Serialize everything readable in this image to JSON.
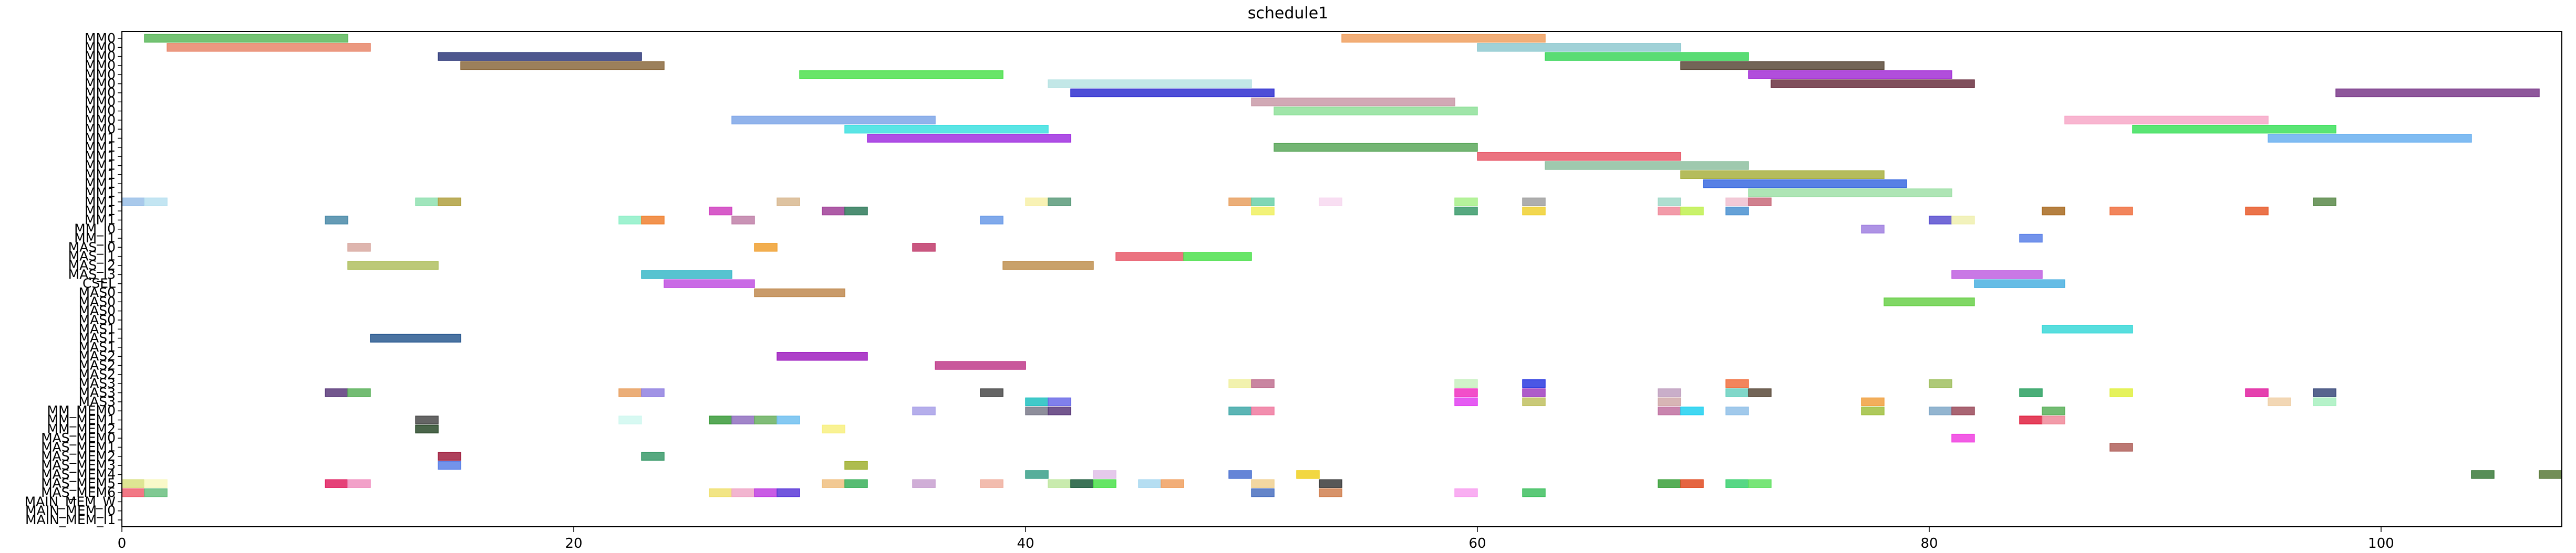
{
  "chart_data": {
    "type": "gantt",
    "title": "schedule1",
    "xlim": [
      0,
      108
    ],
    "x_ticks": [
      0,
      20,
      40,
      60,
      80,
      100
    ],
    "grid": false,
    "legend": "none",
    "rows": [
      "MM0",
      "MM0",
      "MM0",
      "MM0",
      "MM0",
      "MM0",
      "MM0",
      "MM0",
      "MM0",
      "MM0",
      "MM0",
      "MM1",
      "MM1",
      "MM1",
      "MM1",
      "MM1",
      "MM1",
      "MM1",
      "MM1",
      "MM1",
      "MM1",
      "MM_I0",
      "MM_I1",
      "MAS_I0",
      "MAS_I1",
      "MAS_I2",
      "MAS_I3",
      "CSEL",
      "MAS0",
      "MAS0",
      "MAS0",
      "MAS0",
      "MAS1",
      "MAS1",
      "MAS1",
      "MAS2",
      "MAS2",
      "MAS2",
      "MAS3",
      "MAS3",
      "MAS3",
      "MM_MEM0",
      "MM_MEM1",
      "MM_MEM2",
      "MAS_MEM0",
      "MAS_MEM1",
      "MAS_MEM2",
      "MAS_MEM3",
      "MAS_MEM4",
      "MAS_MEM5",
      "MAS_MEM6",
      "MAIN_MEM_W",
      "MAIN_MEM_I0",
      "MAIN_MEM_I1"
    ],
    "tasks": [
      {
        "row": 0,
        "start": 1,
        "end": 10,
        "color": "#5cb85c"
      },
      {
        "row": 0,
        "start": 54,
        "end": 63,
        "color": "#f0a060"
      },
      {
        "row": 1,
        "start": 2,
        "end": 11,
        "color": "#e8866a"
      },
      {
        "row": 1,
        "start": 60,
        "end": 69,
        "color": "#8fc9d0"
      },
      {
        "row": 2,
        "start": 14,
        "end": 23,
        "color": "#2f3a7a"
      },
      {
        "row": 2,
        "start": 63,
        "end": 72,
        "color": "#3dd65c"
      },
      {
        "row": 3,
        "start": 15,
        "end": 24,
        "color": "#8b6a3e"
      },
      {
        "row": 3,
        "start": 69,
        "end": 78,
        "color": "#5a4a3a"
      },
      {
        "row": 4,
        "start": 30,
        "end": 39,
        "color": "#4ee04e"
      },
      {
        "row": 4,
        "start": 72,
        "end": 81,
        "color": "#a32fd6"
      },
      {
        "row": 5,
        "start": 41,
        "end": 50,
        "color": "#b7e3e3"
      },
      {
        "row": 5,
        "start": 73,
        "end": 82,
        "color": "#6a3040"
      },
      {
        "row": 6,
        "start": 42,
        "end": 51,
        "color": "#2f2fd0"
      },
      {
        "row": 6,
        "start": 98,
        "end": 107,
        "color": "#7a3a8a"
      },
      {
        "row": 7,
        "start": 50,
        "end": 59,
        "color": "#c99aa8"
      },
      {
        "row": 8,
        "start": 51,
        "end": 60,
        "color": "#8fe09a"
      },
      {
        "row": 9,
        "start": 27,
        "end": 36,
        "color": "#7ea6e8"
      },
      {
        "row": 9,
        "start": 86,
        "end": 95,
        "color": "#f7a8c8"
      },
      {
        "row": 10,
        "start": 32,
        "end": 41,
        "color": "#3de0e0"
      },
      {
        "row": 10,
        "start": 89,
        "end": 98,
        "color": "#3de05c"
      },
      {
        "row": 11,
        "start": 33,
        "end": 42,
        "color": "#a030e0"
      },
      {
        "row": 11,
        "start": 95,
        "end": 104,
        "color": "#6ab0f0"
      },
      {
        "row": 12,
        "start": 51,
        "end": 60,
        "color": "#5ca85c"
      },
      {
        "row": 13,
        "start": 60,
        "end": 69,
        "color": "#e85a6a"
      },
      {
        "row": 14,
        "start": 63,
        "end": 72,
        "color": "#8ec0a0"
      },
      {
        "row": 15,
        "start": 69,
        "end": 78,
        "color": "#a8b040"
      },
      {
        "row": 16,
        "start": 70,
        "end": 79,
        "color": "#3a6ae0"
      },
      {
        "row": 17,
        "start": 72,
        "end": 81,
        "color": "#a0e0a8"
      },
      {
        "row": 18,
        "start": 0,
        "end": 1,
        "color": "#9ac0e8"
      },
      {
        "row": 18,
        "start": 1,
        "end": 2,
        "color": "#b8e0f0"
      },
      {
        "row": 18,
        "start": 13,
        "end": 14,
        "color": "#8fe0b0"
      },
      {
        "row": 18,
        "start": 14,
        "end": 15,
        "color": "#b0a040"
      },
      {
        "row": 18,
        "start": 29,
        "end": 30,
        "color": "#d8b890"
      },
      {
        "row": 18,
        "start": 40,
        "end": 41,
        "color": "#f7f0a8"
      },
      {
        "row": 18,
        "start": 41,
        "end": 42,
        "color": "#5a9a7a"
      },
      {
        "row": 18,
        "start": 49,
        "end": 50,
        "color": "#e8a060"
      },
      {
        "row": 18,
        "start": 50,
        "end": 51,
        "color": "#6ad0a8"
      },
      {
        "row": 18,
        "start": 53,
        "end": 54,
        "color": "#f7d8f0"
      },
      {
        "row": 18,
        "start": 59,
        "end": 60,
        "color": "#a8f08a"
      },
      {
        "row": 18,
        "start": 62,
        "end": 63,
        "color": "#a0a0a0"
      },
      {
        "row": 18,
        "start": 68,
        "end": 69,
        "color": "#a0d8c8"
      },
      {
        "row": 18,
        "start": 71,
        "end": 72,
        "color": "#f0c0d0"
      },
      {
        "row": 18,
        "start": 72,
        "end": 73,
        "color": "#c86a7a"
      },
      {
        "row": 18,
        "start": 97,
        "end": 98,
        "color": "#5a8a4a"
      },
      {
        "row": 19,
        "start": 26,
        "end": 27,
        "color": "#d040c0"
      },
      {
        "row": 19,
        "start": 31,
        "end": 32,
        "color": "#a04098"
      },
      {
        "row": 19,
        "start": 32,
        "end": 33,
        "color": "#2f7a5a"
      },
      {
        "row": 19,
        "start": 50,
        "end": 51,
        "color": "#f0f060"
      },
      {
        "row": 19,
        "start": 59,
        "end": 60,
        "color": "#3a9a6a"
      },
      {
        "row": 19,
        "start": 62,
        "end": 63,
        "color": "#f0d030"
      },
      {
        "row": 19,
        "start": 68,
        "end": 69,
        "color": "#f08a9a"
      },
      {
        "row": 19,
        "start": 69,
        "end": 70,
        "color": "#c0f050"
      },
      {
        "row": 19,
        "start": 71,
        "end": 72,
        "color": "#4a90d0"
      },
      {
        "row": 19,
        "start": 85,
        "end": 86,
        "color": "#a86a20"
      },
      {
        "row": 19,
        "start": 88,
        "end": 89,
        "color": "#f07040"
      },
      {
        "row": 19,
        "start": 94,
        "end": 95,
        "color": "#e85a2a"
      },
      {
        "row": 20,
        "start": 9,
        "end": 10,
        "color": "#4a8aa8"
      },
      {
        "row": 20,
        "start": 22,
        "end": 23,
        "color": "#8ef0c8"
      },
      {
        "row": 20,
        "start": 23,
        "end": 24,
        "color": "#f08030"
      },
      {
        "row": 20,
        "start": 27,
        "end": 28,
        "color": "#c080a8"
      },
      {
        "row": 20,
        "start": 38,
        "end": 39,
        "color": "#6a9ae8"
      },
      {
        "row": 20,
        "start": 80,
        "end": 81,
        "color": "#5a50d0"
      },
      {
        "row": 20,
        "start": 81,
        "end": 82,
        "color": "#f0f0b0"
      },
      {
        "row": 21,
        "start": 77,
        "end": 78,
        "color": "#a080e0"
      },
      {
        "row": 22,
        "start": 84,
        "end": 85,
        "color": "#5a80e8"
      },
      {
        "row": 23,
        "start": 10,
        "end": 11,
        "color": "#d8a8a0"
      },
      {
        "row": 23,
        "start": 28,
        "end": 29,
        "color": "#f0a030"
      },
      {
        "row": 23,
        "start": 35,
        "end": 36,
        "color": "#c03a6a"
      },
      {
        "row": 24,
        "start": 44,
        "end": 47,
        "color": "#e85a6a"
      },
      {
        "row": 24,
        "start": 47,
        "end": 50,
        "color": "#4ee04e"
      },
      {
        "row": 25,
        "start": 10,
        "end": 14,
        "color": "#b0c060"
      },
      {
        "row": 25,
        "start": 39,
        "end": 43,
        "color": "#c09050"
      },
      {
        "row": 26,
        "start": 23,
        "end": 27,
        "color": "#3ab8c8"
      },
      {
        "row": 26,
        "start": 81,
        "end": 85,
        "color": "#c060e0"
      },
      {
        "row": 27,
        "start": 24,
        "end": 28,
        "color": "#c050e0"
      },
      {
        "row": 27,
        "start": 82,
        "end": 86,
        "color": "#4ab0e0"
      },
      {
        "row": 28,
        "start": 28,
        "end": 32,
        "color": "#c08a50"
      },
      {
        "row": 29,
        "start": 78,
        "end": 82,
        "color": "#6ad04a"
      },
      {
        "row": 32,
        "start": 85,
        "end": 89,
        "color": "#3ad8d8"
      },
      {
        "row": 33,
        "start": 11,
        "end": 15,
        "color": "#2a5a90"
      },
      {
        "row": 35,
        "start": 29,
        "end": 33,
        "color": "#a020c0"
      },
      {
        "row": 36,
        "start": 36,
        "end": 40,
        "color": "#c03a8a"
      },
      {
        "row": 38,
        "start": 49,
        "end": 50,
        "color": "#f0f0a0"
      },
      {
        "row": 38,
        "start": 50,
        "end": 51,
        "color": "#c07090"
      },
      {
        "row": 38,
        "start": 59,
        "end": 60,
        "color": "#c8f0c0"
      },
      {
        "row": 38,
        "start": 62,
        "end": 63,
        "color": "#2a3ae0"
      },
      {
        "row": 38,
        "start": 71,
        "end": 72,
        "color": "#f07040"
      },
      {
        "row": 38,
        "start": 80,
        "end": 81,
        "color": "#a0c060"
      },
      {
        "row": 39,
        "start": 9,
        "end": 10,
        "color": "#5a3a7a"
      },
      {
        "row": 39,
        "start": 10,
        "end": 11,
        "color": "#5ab05a"
      },
      {
        "row": 39,
        "start": 22,
        "end": 23,
        "color": "#e8a060"
      },
      {
        "row": 39,
        "start": 23,
        "end": 24,
        "color": "#9080e0"
      },
      {
        "row": 39,
        "start": 38,
        "end": 39,
        "color": "#4a4a4a"
      },
      {
        "row": 39,
        "start": 59,
        "end": 60,
        "color": "#f030c0"
      },
      {
        "row": 39,
        "start": 62,
        "end": 63,
        "color": "#a040c0"
      },
      {
        "row": 39,
        "start": 68,
        "end": 69,
        "color": "#c0a0c0"
      },
      {
        "row": 39,
        "start": 71,
        "end": 72,
        "color": "#6ad0c0"
      },
      {
        "row": 39,
        "start": 72,
        "end": 73,
        "color": "#5a4a3a"
      },
      {
        "row": 39,
        "start": 84,
        "end": 85,
        "color": "#2aa060"
      },
      {
        "row": 39,
        "start": 88,
        "end": 89,
        "color": "#e0f040"
      },
      {
        "row": 39,
        "start": 94,
        "end": 95,
        "color": "#e020a0"
      },
      {
        "row": 39,
        "start": 97,
        "end": 98,
        "color": "#3a4a7a"
      },
      {
        "row": 40,
        "start": 40,
        "end": 41,
        "color": "#20c0c0"
      },
      {
        "row": 40,
        "start": 41,
        "end": 42,
        "color": "#6a6ae8"
      },
      {
        "row": 40,
        "start": 59,
        "end": 60,
        "color": "#e040f0"
      },
      {
        "row": 40,
        "start": 62,
        "end": 63,
        "color": "#c0c060"
      },
      {
        "row": 40,
        "start": 68,
        "end": 69,
        "color": "#d0a8a8"
      },
      {
        "row": 40,
        "start": 77,
        "end": 78,
        "color": "#f0a040"
      },
      {
        "row": 40,
        "start": 95,
        "end": 96,
        "color": "#f0d0a8"
      },
      {
        "row": 40,
        "start": 97,
        "end": 98,
        "color": "#a8f0c0"
      },
      {
        "row": 41,
        "start": 35,
        "end": 36,
        "color": "#a8a0e8"
      },
      {
        "row": 41,
        "start": 40,
        "end": 41,
        "color": "#7a7a8a"
      },
      {
        "row": 41,
        "start": 41,
        "end": 42,
        "color": "#5a3a7a"
      },
      {
        "row": 41,
        "start": 49,
        "end": 50,
        "color": "#40a8a8"
      },
      {
        "row": 41,
        "start": 50,
        "end": 51,
        "color": "#f07aa0"
      },
      {
        "row": 41,
        "start": 68,
        "end": 69,
        "color": "#c070a0"
      },
      {
        "row": 41,
        "start": 69,
        "end": 70,
        "color": "#20d0f0"
      },
      {
        "row": 41,
        "start": 71,
        "end": 72,
        "color": "#90c0e8"
      },
      {
        "row": 41,
        "start": 77,
        "end": 78,
        "color": "#a0c040"
      },
      {
        "row": 41,
        "start": 80,
        "end": 81,
        "color": "#80a8c8"
      },
      {
        "row": 41,
        "start": 81,
        "end": 82,
        "color": "#9a4a5a"
      },
      {
        "row": 41,
        "start": 85,
        "end": 86,
        "color": "#5ab05a"
      },
      {
        "row": 42,
        "start": 13,
        "end": 14,
        "color": "#4a4a4a"
      },
      {
        "row": 42,
        "start": 22,
        "end": 23,
        "color": "#d0f8f0"
      },
      {
        "row": 42,
        "start": 26,
        "end": 27,
        "color": "#3a9a3a"
      },
      {
        "row": 42,
        "start": 27,
        "end": 28,
        "color": "#9070c0"
      },
      {
        "row": 42,
        "start": 28,
        "end": 29,
        "color": "#6ab060"
      },
      {
        "row": 42,
        "start": 29,
        "end": 30,
        "color": "#70c0f0"
      },
      {
        "row": 42,
        "start": 84,
        "end": 85,
        "color": "#e02040"
      },
      {
        "row": 42,
        "start": 85,
        "end": 86,
        "color": "#f08a9a"
      },
      {
        "row": 43,
        "start": 13,
        "end": 14,
        "color": "#2a4a2a"
      },
      {
        "row": 43,
        "start": 31,
        "end": 32,
        "color": "#f8f080"
      },
      {
        "row": 44,
        "start": 81,
        "end": 82,
        "color": "#f040e0"
      },
      {
        "row": 45,
        "start": 88,
        "end": 89,
        "color": "#b0605a"
      },
      {
        "row": 46,
        "start": 14,
        "end": 15,
        "color": "#a02040"
      },
      {
        "row": 46,
        "start": 23,
        "end": 24,
        "color": "#3a9a6a"
      },
      {
        "row": 47,
        "start": 14,
        "end": 15,
        "color": "#5a80e8"
      },
      {
        "row": 47,
        "start": 32,
        "end": 33,
        "color": "#a0b030"
      },
      {
        "row": 48,
        "start": 40,
        "end": 41,
        "color": "#3aa08a"
      },
      {
        "row": 48,
        "start": 43,
        "end": 44,
        "color": "#e0c0e8"
      },
      {
        "row": 48,
        "start": 49,
        "end": 50,
        "color": "#4a70d0"
      },
      {
        "row": 48,
        "start": 52,
        "end": 53,
        "color": "#f0d020"
      },
      {
        "row": 48,
        "start": 104,
        "end": 105,
        "color": "#3a7a3a"
      },
      {
        "row": 48,
        "start": 107,
        "end": 108,
        "color": "#5a7a3a"
      },
      {
        "row": 49,
        "start": 0,
        "end": 1,
        "color": "#d8e080"
      },
      {
        "row": 49,
        "start": 1,
        "end": 2,
        "color": "#f8f8c0"
      },
      {
        "row": 49,
        "start": 9,
        "end": 10,
        "color": "#e02060"
      },
      {
        "row": 49,
        "start": 10,
        "end": 11,
        "color": "#f090c0"
      },
      {
        "row": 49,
        "start": 31,
        "end": 32,
        "color": "#f0c080"
      },
      {
        "row": 49,
        "start": 32,
        "end": 33,
        "color": "#3ab05a"
      },
      {
        "row": 49,
        "start": 35,
        "end": 36,
        "color": "#c8a0d0"
      },
      {
        "row": 49,
        "start": 38,
        "end": 39,
        "color": "#f0b0a0"
      },
      {
        "row": 49,
        "start": 41,
        "end": 42,
        "color": "#c0e8a0"
      },
      {
        "row": 49,
        "start": 42,
        "end": 43,
        "color": "#1a5a3a"
      },
      {
        "row": 49,
        "start": 43,
        "end": 44,
        "color": "#4ae04a"
      },
      {
        "row": 49,
        "start": 45,
        "end": 46,
        "color": "#a8d8f0"
      },
      {
        "row": 49,
        "start": 46,
        "end": 47,
        "color": "#f0a060"
      },
      {
        "row": 49,
        "start": 50,
        "end": 51,
        "color": "#f0d090"
      },
      {
        "row": 49,
        "start": 53,
        "end": 54,
        "color": "#3a3a3a"
      },
      {
        "row": 49,
        "start": 68,
        "end": 69,
        "color": "#3aa03a"
      },
      {
        "row": 49,
        "start": 69,
        "end": 70,
        "color": "#e04a20"
      },
      {
        "row": 49,
        "start": 71,
        "end": 72,
        "color": "#3ad070"
      },
      {
        "row": 49,
        "start": 72,
        "end": 73,
        "color": "#60e060"
      },
      {
        "row": 50,
        "start": 0,
        "end": 1,
        "color": "#f06070"
      },
      {
        "row": 50,
        "start": 1,
        "end": 2,
        "color": "#6ac080"
      },
      {
        "row": 50,
        "start": 26,
        "end": 27,
        "color": "#f0e070"
      },
      {
        "row": 50,
        "start": 27,
        "end": 28,
        "color": "#f0a8c8"
      },
      {
        "row": 50,
        "start": 28,
        "end": 29,
        "color": "#c040e0"
      },
      {
        "row": 50,
        "start": 29,
        "end": 30,
        "color": "#5a3ad8"
      },
      {
        "row": 50,
        "start": 50,
        "end": 51,
        "color": "#4a70c0"
      },
      {
        "row": 50,
        "start": 53,
        "end": 54,
        "color": "#d08050"
      },
      {
        "row": 50,
        "start": 59,
        "end": 60,
        "color": "#f8a0f0"
      },
      {
        "row": 50,
        "start": 62,
        "end": 63,
        "color": "#40c060"
      }
    ]
  }
}
